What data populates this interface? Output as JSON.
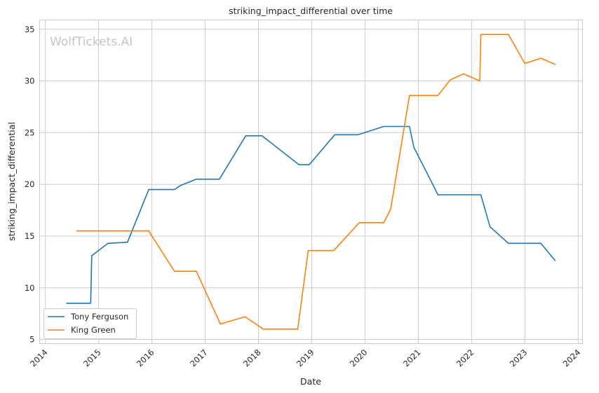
{
  "chart_data": {
    "type": "line",
    "title": "striking_impact_differential over time",
    "xlabel": "Date",
    "ylabel": "striking_impact_differential",
    "watermark": "WolfTickets.AI",
    "x_axis_type": "date",
    "xlim": [
      "2013-11-23",
      "2024-01-31"
    ],
    "ylim": [
      4.6,
      35.9
    ],
    "x_ticks": [
      "2014-01-01",
      "2015-01-01",
      "2016-01-01",
      "2017-01-01",
      "2018-01-01",
      "2019-01-01",
      "2020-01-01",
      "2021-01-01",
      "2022-01-01",
      "2023-01-01",
      "2024-01-01"
    ],
    "x_tick_labels": [
      "2014",
      "2015",
      "2016",
      "2017",
      "2018",
      "2019",
      "2020",
      "2021",
      "2022",
      "2023",
      "2024"
    ],
    "y_ticks": [
      5,
      10,
      15,
      20,
      25,
      30,
      35
    ],
    "y_tick_labels": [
      "5",
      "10",
      "15",
      "20",
      "25",
      "30",
      "35"
    ],
    "grid": true,
    "legend_position": "lower-left",
    "series": [
      {
        "name": "Tony Ferguson",
        "color": "#1f77b4",
        "x": [
          "2014-05-24",
          "2014-11-08",
          "2014-11-15",
          "2015-03-07",
          "2015-07-18",
          "2015-12-11",
          "2016-06-04",
          "2016-07-16",
          "2016-11-01",
          "2017-04-08",
          "2017-10-06",
          "2018-01-25",
          "2018-10-06",
          "2018-12-15",
          "2019-06-08",
          "2019-11-15",
          "2020-05-09",
          "2020-11-01",
          "2020-12-01",
          "2021-05-15",
          "2022-03-05",
          "2022-05-07",
          "2022-09-10",
          "2023-04-20",
          "2023-07-29"
        ],
        "y": [
          8.5,
          8.5,
          13.1,
          14.3,
          14.4,
          19.5,
          19.5,
          19.9,
          20.5,
          20.5,
          24.7,
          24.7,
          21.9,
          21.9,
          24.8,
          24.8,
          25.6,
          25.6,
          23.6,
          19.0,
          19.0,
          15.9,
          14.3,
          14.3,
          12.6
        ]
      },
      {
        "name": "King Green",
        "color": "#ff7f0e",
        "x": [
          "2014-08-02",
          "2015-12-10",
          "2016-06-04",
          "2016-11-01",
          "2017-04-15",
          "2017-10-01",
          "2018-02-03",
          "2018-09-27",
          "2018-12-08",
          "2019-06-01",
          "2019-11-23",
          "2020-05-09",
          "2020-06-25",
          "2020-11-01",
          "2021-05-15",
          "2021-08-07",
          "2021-11-06",
          "2022-02-26",
          "2022-03-05",
          "2022-09-10",
          "2023-01-01",
          "2023-04-22",
          "2023-07-29"
        ],
        "y": [
          15.5,
          15.5,
          11.6,
          11.6,
          6.5,
          7.2,
          6.0,
          6.0,
          13.6,
          13.6,
          16.3,
          16.3,
          17.6,
          28.6,
          28.6,
          30.1,
          30.7,
          30.0,
          34.5,
          34.5,
          31.7,
          32.2,
          31.6
        ]
      }
    ]
  }
}
